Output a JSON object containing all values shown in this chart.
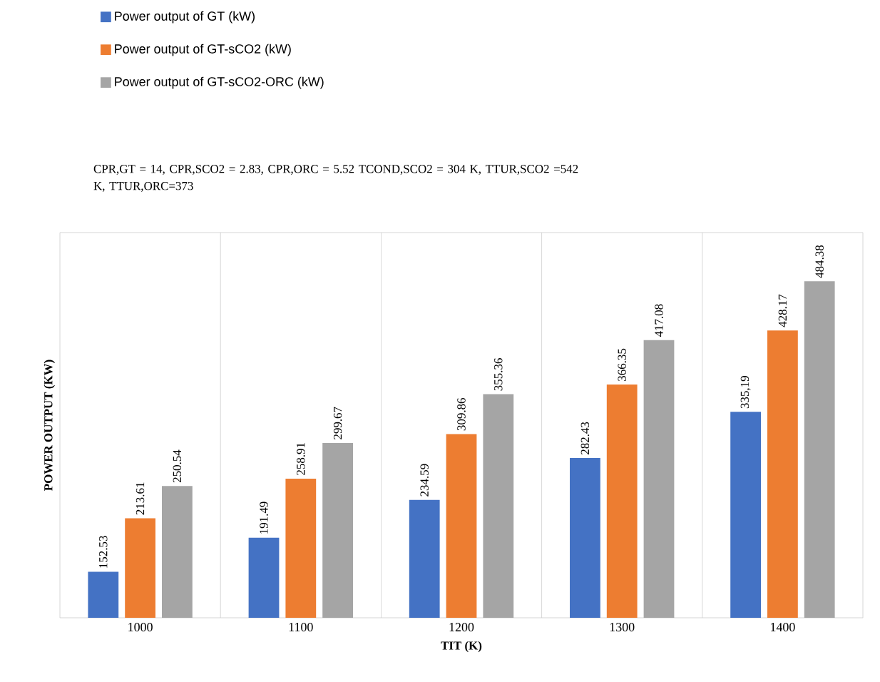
{
  "chart_data": {
    "type": "bar",
    "categories": [
      "1000",
      "1100",
      "1200",
      "1300",
      "1400"
    ],
    "series": [
      {
        "name": "Power output of GT (kW)",
        "color": "#4472c4",
        "values": [
          152.53,
          191.49,
          234.59,
          282.43,
          335.19
        ],
        "value_labels": [
          "152.53",
          "191.49",
          "234.59",
          "282.43",
          "335,19"
        ]
      },
      {
        "name": "Power output of GT-sCO2 (kW)",
        "color": "#ed7d31",
        "values": [
          213.61,
          258.91,
          309.86,
          366.35,
          428.17
        ],
        "value_labels": [
          "213.61",
          "258.91",
          "309.86",
          "366.35",
          "428.17"
        ]
      },
      {
        "name": "Power output of GT-sCO2-ORC (kW)",
        "color": "#a5a5a5",
        "values": [
          250.54,
          299.67,
          355.36,
          417.08,
          484.38
        ],
        "value_labels": [
          "250.54",
          "299.67",
          "355.36",
          "417.08",
          "484.38"
        ]
      }
    ],
    "ylim": [
      100,
      540
    ],
    "xlabel": "TIT (K)",
    "ylabel": "POWER OUTPUT (KW)",
    "annotations": [
      "CPR,GT = 14, CPR,SCO2 = 2.83, CPR,ORC = 5.52 TCOND,SCO2 = 304 K, TTUR,SCO2 =542 K, TTUR,ORC=373"
    ],
    "legend": "top left",
    "grid": "x",
    "tick_labels": "x"
  }
}
